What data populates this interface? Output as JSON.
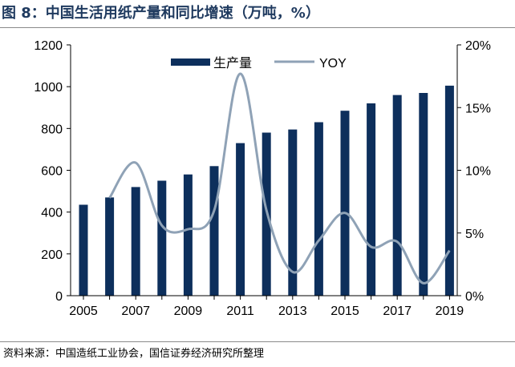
{
  "title": "图 8：中国生活用纸产量和同比增速（万吨，%）",
  "source": "资料来源：中国造纸工业协会，国信证券经济研究所整理",
  "colors": {
    "bar": "#0d2f5c",
    "line": "#8fa2b6",
    "axis": "#000000",
    "title": "#1f3a5f"
  },
  "chart_data": {
    "type": "bar",
    "x": [
      2005,
      2006,
      2007,
      2008,
      2009,
      2010,
      2011,
      2012,
      2013,
      2014,
      2015,
      2016,
      2017,
      2018,
      2019
    ],
    "x_tick_labels": [
      "2005",
      "2007",
      "2009",
      "2011",
      "2013",
      "2015",
      "2017",
      "2019"
    ],
    "series": [
      {
        "name": "生产量",
        "type": "bar",
        "axis": "left",
        "values": [
          435,
          470,
          520,
          550,
          580,
          620,
          730,
          780,
          795,
          830,
          885,
          920,
          960,
          970,
          1005
        ]
      },
      {
        "name": "YOY",
        "type": "line",
        "axis": "right",
        "values": [
          null,
          7.8,
          10.6,
          5.6,
          5.3,
          6.8,
          17.7,
          6.8,
          1.9,
          4.4,
          6.6,
          3.9,
          4.3,
          1.0,
          3.6
        ]
      }
    ],
    "y_left": {
      "ylim": [
        0,
        1200
      ],
      "ticks": [
        "0",
        "200",
        "400",
        "600",
        "800",
        "1000",
        "1200"
      ]
    },
    "y_right": {
      "ylim": [
        0,
        20
      ],
      "ticks": [
        "0%",
        "5%",
        "10%",
        "15%",
        "20%"
      ]
    },
    "legend_position": "top-center",
    "grid": false
  }
}
